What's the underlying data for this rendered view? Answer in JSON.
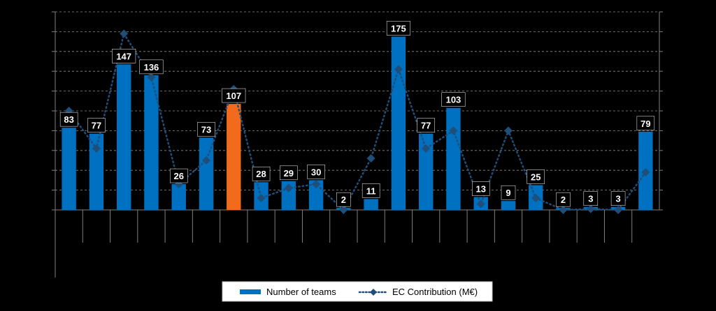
{
  "chart_data": {
    "type": "bar",
    "categories": [
      "",
      "",
      "",
      "",
      "",
      "",
      "",
      "",
      "",
      "",
      "",
      "",
      "",
      "",
      "",
      "",
      "",
      "",
      "",
      "",
      "",
      ""
    ],
    "series": [
      {
        "name": "Number of teams",
        "kind": "bar",
        "values": [
          83,
          77,
          147,
          136,
          26,
          73,
          107,
          28,
          29,
          30,
          2,
          11,
          175,
          77,
          103,
          13,
          9,
          25,
          2,
          3,
          3,
          79
        ],
        "color": "#0070C0",
        "highlight_color": "#F26B1D",
        "highlight_index": 6
      },
      {
        "name": "EC Contribution (M€)",
        "kind": "line",
        "values": [
          50,
          31,
          89,
          67,
          13,
          25,
          61,
          6,
          11,
          13,
          0,
          26,
          71,
          31,
          40,
          3,
          40,
          6,
          0,
          0.5,
          0,
          19
        ],
        "color": "#1F4E79",
        "marker": "diamond",
        "style": "dotted"
      }
    ],
    "y_left_lim": [
      0,
      200
    ],
    "y_right_lim": [
      0,
      100
    ],
    "grid": true,
    "legend_position": "bottom",
    "label_color": "#000000",
    "label_text_color": "#FFFFFF"
  }
}
